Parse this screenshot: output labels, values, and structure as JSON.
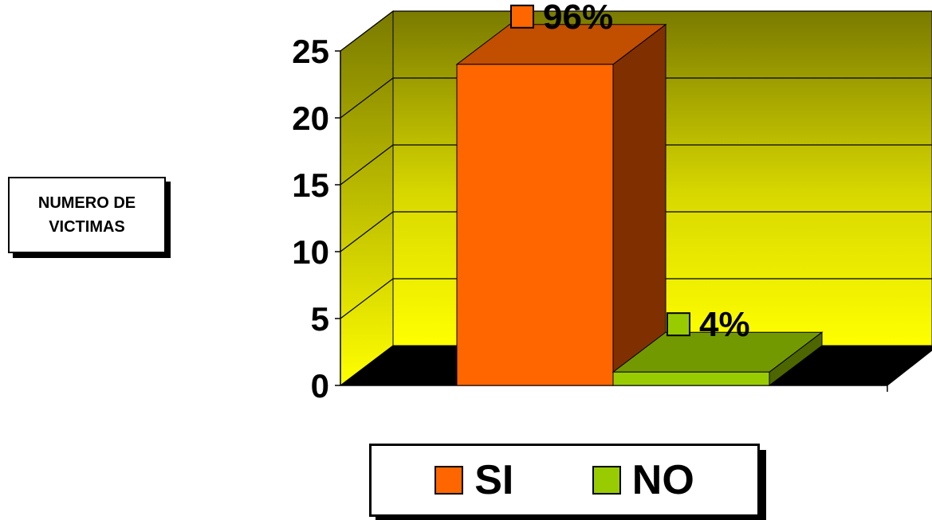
{
  "chart_data": {
    "type": "bar",
    "categories": [
      "SI",
      "NO"
    ],
    "values": [
      24,
      1
    ],
    "data_labels": [
      "96%",
      "4%"
    ],
    "ylabel": "NUMERO DE VICTIMAS",
    "ylabel_lines": [
      "NUMERO DE",
      "VICTIMAS"
    ],
    "ylim": [
      0,
      25
    ],
    "yticks": [
      "0",
      "5",
      "10",
      "15",
      "20",
      "25"
    ],
    "grid": true,
    "legend_position": "bottom",
    "three_d": true,
    "colors": {
      "SI": "#FF6600",
      "SI_side": "#803000",
      "SI_top": "#C24E00",
      "NO": "#99CC00",
      "NO_side": "#4D6600",
      "NO_top": "#739900",
      "wall_top": "#7A7A00",
      "wall_bottom": "#FFFF00",
      "floor": "#000000"
    }
  },
  "legend": {
    "items": [
      {
        "label": "SI",
        "color": "#FF6600"
      },
      {
        "label": "NO",
        "color": "#99CC00"
      }
    ]
  }
}
